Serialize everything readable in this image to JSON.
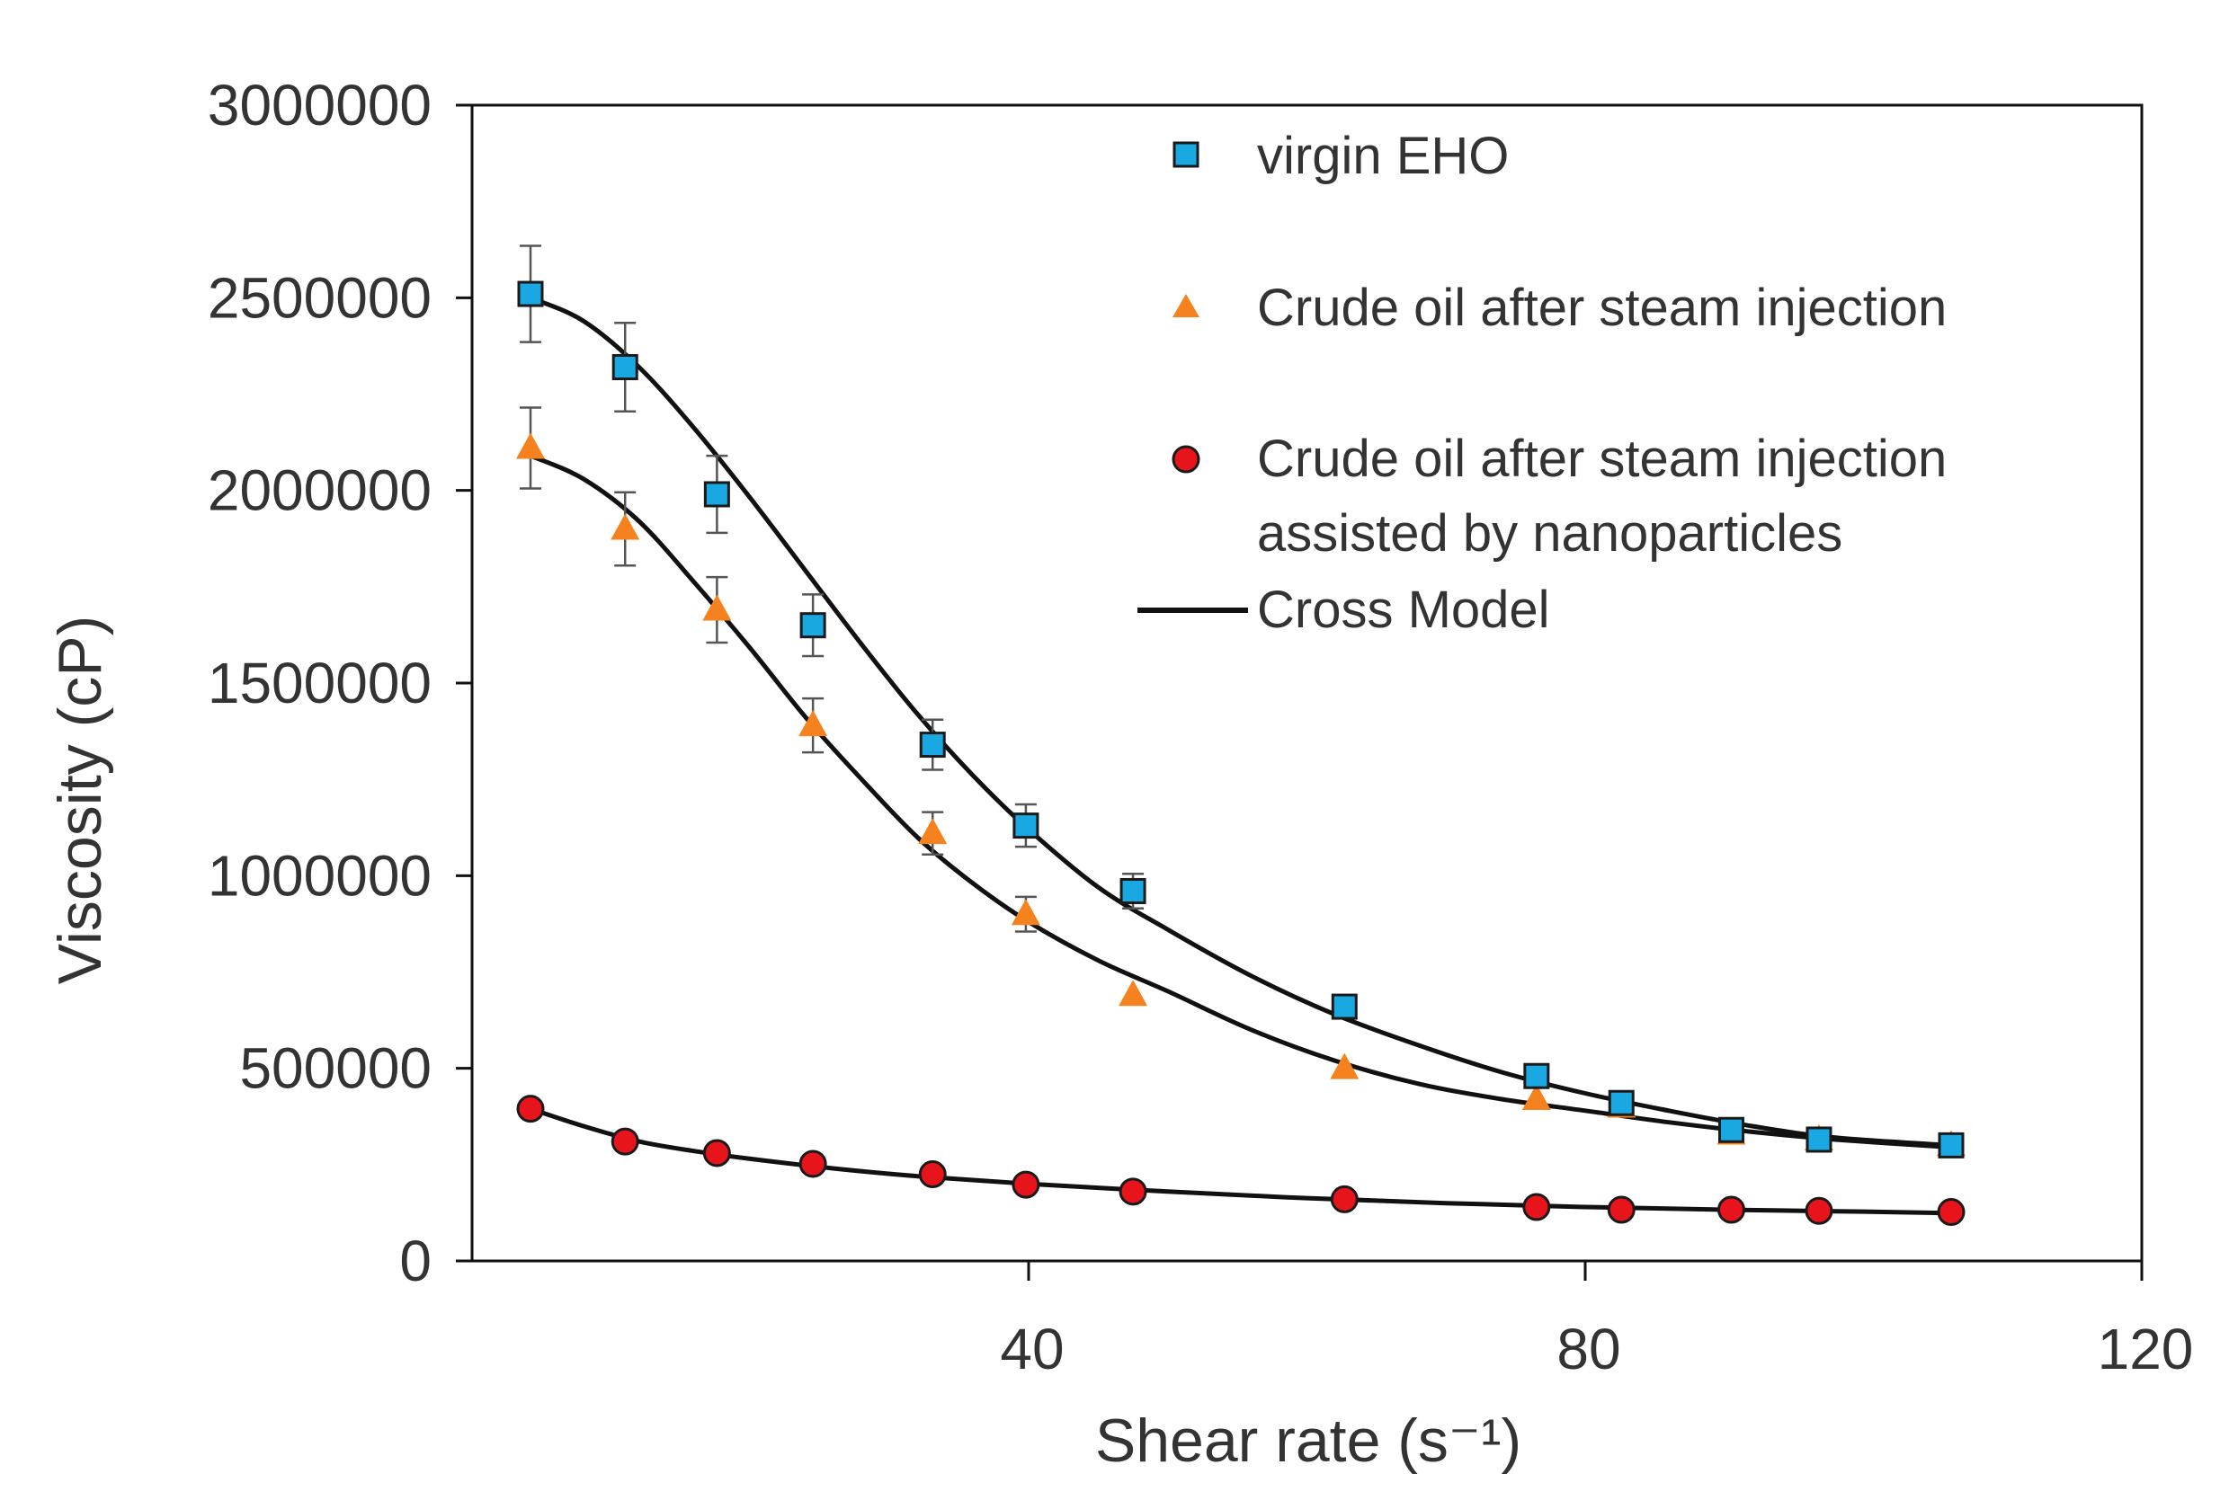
{
  "chart_data": {
    "type": "scatter",
    "title": "",
    "xlabel": "Shear rate (s⁻¹)",
    "ylabel": "Viscosity (cP)",
    "xlim": [
      0,
      120
    ],
    "ylim": [
      0,
      3000000
    ],
    "x_ticks": [
      40,
      80,
      120
    ],
    "x_tick_labels": [
      "40",
      "80",
      "120"
    ],
    "y_ticks": [
      0,
      500000,
      1000000,
      1500000,
      2000000,
      2500000,
      3000000
    ],
    "y_tick_labels": [
      "0",
      "500000",
      "1000000",
      "1500000",
      "2000000",
      "2500000",
      "3000000"
    ],
    "grid": false,
    "legend_position": "top-right",
    "series": [
      {
        "name": "virgin EHO",
        "marker": "square",
        "color": "#1aa8e2",
        "x": [
          4.2,
          11,
          17.6,
          24.5,
          33.1,
          39.8,
          47.5,
          62.7,
          76.5,
          82.6,
          90.5,
          96.8,
          106.3
        ],
        "y": [
          2510000,
          2320000,
          1990000,
          1650000,
          1340000,
          1130000,
          960000,
          660000,
          480000,
          410000,
          340000,
          315000,
          300000
        ],
        "error": [
          125000,
          115000,
          100000,
          80000,
          65000,
          55000,
          45000,
          0,
          0,
          0,
          0,
          0,
          0
        ]
      },
      {
        "name": "Crude oil after steam injection",
        "marker": "triangle",
        "color": "#f5821f",
        "x": [
          4.2,
          11,
          17.6,
          24.5,
          33.1,
          39.8,
          47.5,
          62.7,
          76.5,
          82.6,
          90.5,
          96.8,
          106.3
        ],
        "y": [
          2110000,
          1900000,
          1690000,
          1390000,
          1110000,
          900000,
          690000,
          500000,
          420000,
          400000,
          330000,
          315000,
          300000
        ],
        "error": [
          105000,
          95000,
          85000,
          70000,
          55000,
          45000,
          0,
          0,
          0,
          0,
          0,
          0,
          0
        ]
      },
      {
        "name": "Crude oil after steam injection assisted by nanoparticles",
        "legend_lines": [
          "Crude oil after steam injection",
          "assisted by nanoparticles"
        ],
        "marker": "circle",
        "color": "#e8141b",
        "x": [
          4.2,
          11,
          17.6,
          24.5,
          33.1,
          39.8,
          47.5,
          62.7,
          76.5,
          82.6,
          90.5,
          96.8,
          106.3
        ],
        "y": [
          395000,
          310000,
          280000,
          252000,
          225000,
          198000,
          180000,
          160000,
          140000,
          133000,
          133000,
          130000,
          127000
        ],
        "error": [
          0,
          0,
          0,
          0,
          0,
          0,
          0,
          0,
          0,
          0,
          0,
          0,
          0
        ]
      }
    ],
    "model_name": "Cross Model",
    "model_curves": [
      {
        "name": "Cross Model (virgin EHO)",
        "x": [
          4.2,
          8,
          12,
          16,
          20,
          24,
          28,
          32,
          36,
          40,
          45,
          50,
          56,
          62,
          68,
          74,
          80,
          86,
          92,
          98,
          106.3
        ],
        "y": [
          2500000,
          2440000,
          2320000,
          2160000,
          1980000,
          1790000,
          1600000,
          1420000,
          1260000,
          1120000,
          970000,
          860000,
          740000,
          640000,
          560000,
          490000,
          435000,
          390000,
          350000,
          320000,
          300000
        ]
      },
      {
        "name": "Cross Model (Crude oil after steam injection)",
        "x": [
          4.2,
          8,
          12,
          16,
          20,
          24,
          28,
          32,
          36,
          40,
          45,
          50,
          56,
          62,
          68,
          74,
          80,
          86,
          92,
          98,
          106.3
        ],
        "y": [
          2090000,
          2030000,
          1920000,
          1760000,
          1590000,
          1410000,
          1250000,
          1100000,
          980000,
          880000,
          780000,
          700000,
          600000,
          520000,
          460000,
          420000,
          390000,
          360000,
          335000,
          315000,
          295000
        ]
      },
      {
        "name": "Cross Model (nanoparticles)",
        "x": [
          4.2,
          8,
          12,
          16,
          20,
          26,
          32,
          40,
          50,
          60,
          70,
          80,
          90,
          100,
          106.3
        ],
        "y": [
          395000,
          350000,
          310000,
          285000,
          265000,
          240000,
          220000,
          200000,
          180000,
          163000,
          150000,
          140000,
          133000,
          128000,
          124000
        ]
      }
    ]
  }
}
